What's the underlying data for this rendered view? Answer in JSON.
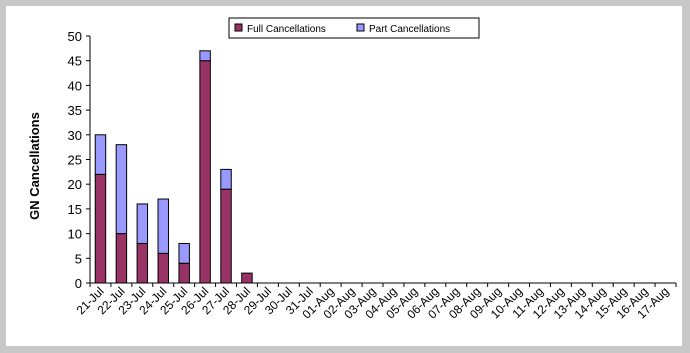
{
  "chart_data": {
    "type": "bar",
    "stacked": true,
    "ylabel": "GN Cancellations",
    "xlabel": "",
    "title": "",
    "ylim": [
      0,
      50
    ],
    "yticks": [
      0,
      5,
      10,
      15,
      20,
      25,
      30,
      35,
      40,
      45,
      50
    ],
    "grid": false,
    "legend_position": "top-right",
    "categories": [
      "21-Jul",
      "22-Jul",
      "23-Jul",
      "24-Jul",
      "25-Jul",
      "26-Jul",
      "27-Jul",
      "28-Jul",
      "29-Jul",
      "30-Jul",
      "31-Jul",
      "01-Aug",
      "02-Aug",
      "03-Aug",
      "04-Aug",
      "05-Aug",
      "06-Aug",
      "07-Aug",
      "08-Aug",
      "09-Aug",
      "10-Aug",
      "11-Aug",
      "12-Aug",
      "13-Aug",
      "14-Aug",
      "15-Aug",
      "16-Aug",
      "17-Aug"
    ],
    "series": [
      {
        "name": "Full Cancellations",
        "color": "#993366",
        "values": [
          22,
          10,
          8,
          6,
          4,
          45,
          19,
          2,
          0,
          0,
          0,
          0,
          0,
          0,
          0,
          0,
          0,
          0,
          0,
          0,
          0,
          0,
          0,
          0,
          0,
          0,
          0,
          0
        ]
      },
      {
        "name": "Part Cancellations",
        "color": "#9999ff",
        "values": [
          8,
          18,
          8,
          11,
          4,
          2,
          4,
          0,
          0,
          0,
          0,
          0,
          0,
          0,
          0,
          0,
          0,
          0,
          0,
          0,
          0,
          0,
          0,
          0,
          0,
          0,
          0,
          0
        ]
      }
    ]
  }
}
